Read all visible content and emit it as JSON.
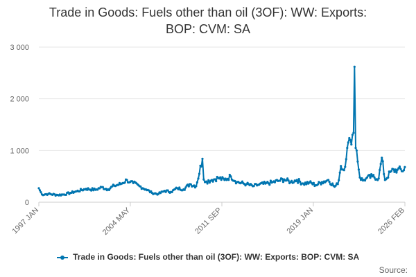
{
  "chart_data": {
    "type": "line",
    "title_lines": [
      "Trade in Goods: Fuels other than oil (3OF): WW: Exports:",
      "BOP: CVM: SA"
    ],
    "xlabel": "",
    "ylabel": "",
    "x_start": "1997 JAN",
    "x_end": "2026 FEB",
    "x_tick_labels": [
      "1997 JAN",
      "2004 MAY",
      "2011 SEP",
      "2019 JAN",
      "2026 FEB"
    ],
    "ylim": [
      0,
      3000
    ],
    "y_ticks": [
      0,
      1000,
      2000,
      3000
    ],
    "y_tick_labels": [
      "0",
      "1 000",
      "2 000",
      "3 000"
    ],
    "grid": true,
    "legend_position": "bottom",
    "series_color": "#0075b0",
    "series": [
      {
        "name": "Trade in Goods: Fuels other than oil (3OF): WW: Exports: BOP: CVM: SA",
        "x": [
          1997.0,
          1997.25,
          1997.75,
          1998.5,
          1999.0,
          1999.5,
          2000.0,
          2000.75,
          2001.5,
          2002.0,
          2002.5,
          2003.0,
          2003.5,
          2004.0,
          2004.25,
          2004.5,
          2005.0,
          2005.5,
          2006.0,
          2006.5,
          2007.0,
          2007.5,
          2008.0,
          2008.5,
          2009.0,
          2009.5,
          2010.0,
          2010.1,
          2010.3,
          2010.75,
          2011.25,
          2011.75,
          2012.25,
          2012.75,
          2013.5,
          2014.0,
          2014.5,
          2015.0,
          2015.5,
          2016.0,
          2016.5,
          2017.0,
          2017.5,
          2018.0,
          2018.5,
          2019.0,
          2019.5,
          2020.0,
          2020.5,
          2020.75,
          2021.0,
          2021.25,
          2021.5,
          2021.75,
          2022.0,
          2022.08,
          2022.17,
          2022.25,
          2022.5,
          2022.75,
          2023.0,
          2023.5,
          2024.0,
          2024.25,
          2024.5,
          2025.0,
          2025.5,
          2026.0,
          2026.08
        ],
        "values": [
          270,
          150,
          160,
          140,
          150,
          180,
          210,
          260,
          240,
          290,
          250,
          320,
          350,
          430,
          390,
          370,
          310,
          250,
          180,
          160,
          220,
          200,
          270,
          250,
          350,
          310,
          840,
          440,
          400,
          430,
          470,
          430,
          500,
          390,
          350,
          310,
          340,
          360,
          380,
          410,
          440,
          390,
          430,
          360,
          380,
          330,
          390,
          430,
          300,
          350,
          700,
          620,
          1050,
          1200,
          1340,
          2620,
          1050,
          1000,
          480,
          420,
          460,
          500,
          460,
          860,
          430,
          600,
          630,
          620,
          680
        ]
      }
    ]
  },
  "source_label": "Source:"
}
